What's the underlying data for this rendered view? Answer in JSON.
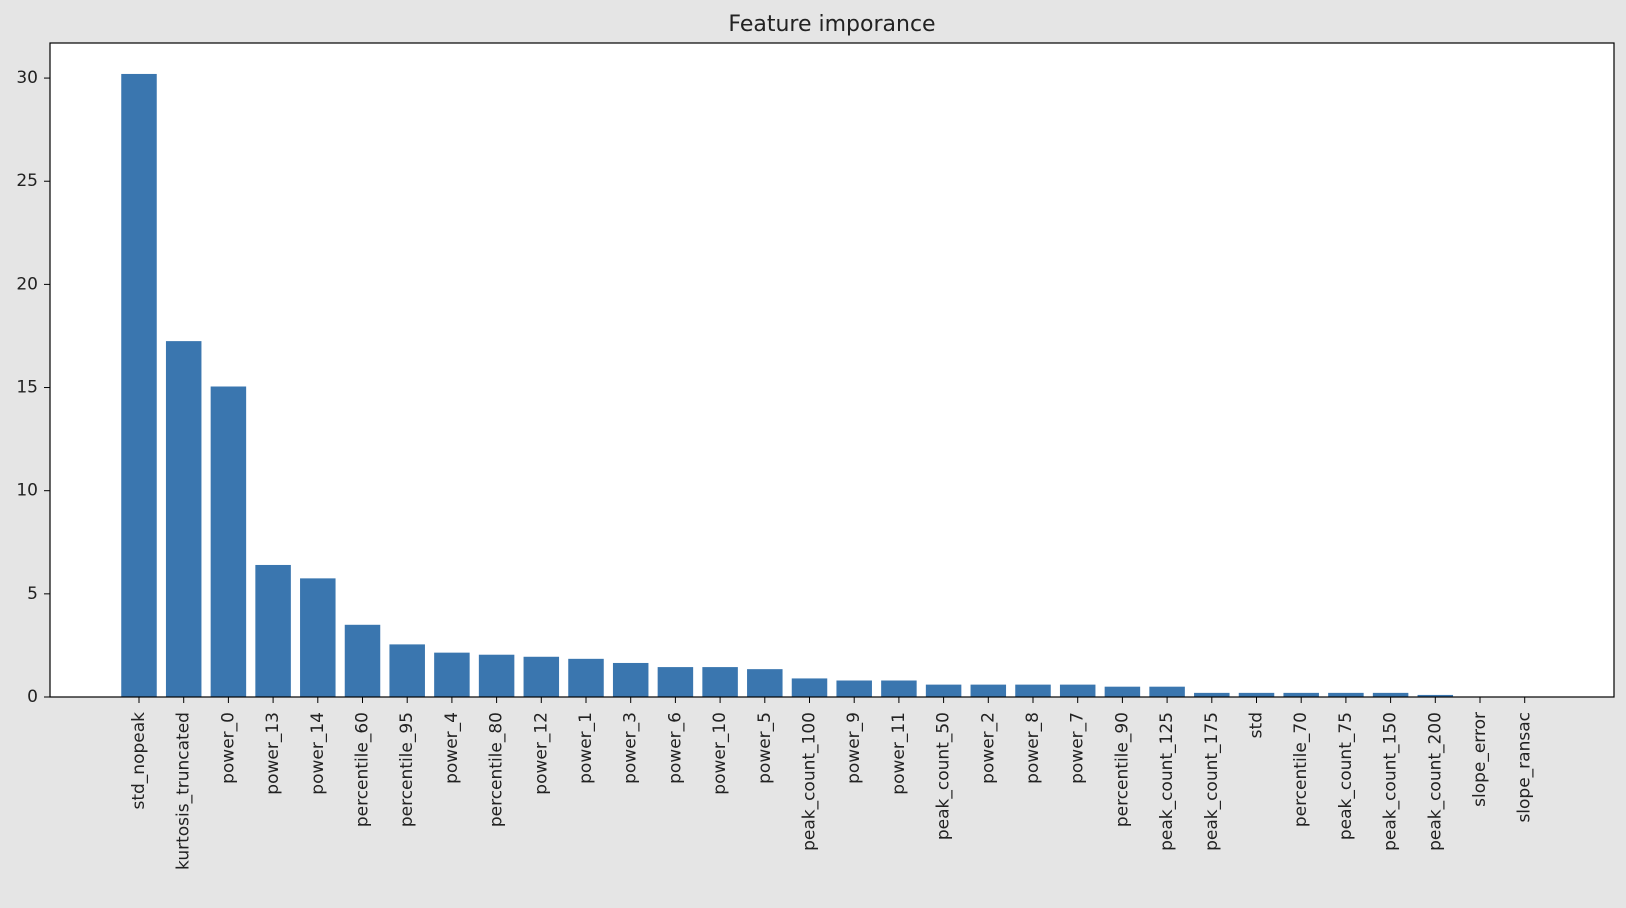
{
  "chart_data": {
    "type": "bar",
    "title": "Feature imporance",
    "xlabel": "",
    "ylabel": "",
    "ylim": [
      0,
      31.7
    ],
    "yticks": [
      0,
      5,
      10,
      15,
      20,
      25,
      30
    ],
    "grid": false,
    "bar_color": "#3a76af",
    "categories": [
      "std_nopeak",
      "kurtosis_truncated",
      "power_0",
      "power_13",
      "power_14",
      "percentile_60",
      "percentile_95",
      "power_4",
      "percentile_80",
      "power_12",
      "power_1",
      "power_3",
      "power_6",
      "power_10",
      "power_5",
      "peak_count_100",
      "power_9",
      "power_11",
      "peak_count_50",
      "power_2",
      "power_8",
      "power_7",
      "percentile_90",
      "peak_count_125",
      "peak_count_175",
      "std",
      "percentile_70",
      "peak_count_75",
      "peak_count_150",
      "peak_count_200",
      "slope_error",
      "slope_ransac"
    ],
    "values": [
      30.2,
      17.25,
      15.05,
      6.4,
      5.75,
      3.5,
      2.55,
      2.15,
      2.05,
      1.95,
      1.85,
      1.65,
      1.45,
      1.45,
      1.35,
      0.9,
      0.8,
      0.8,
      0.6,
      0.6,
      0.6,
      0.6,
      0.5,
      0.5,
      0.2,
      0.2,
      0.2,
      0.2,
      0.2,
      0.1,
      0.0,
      0.0
    ]
  }
}
